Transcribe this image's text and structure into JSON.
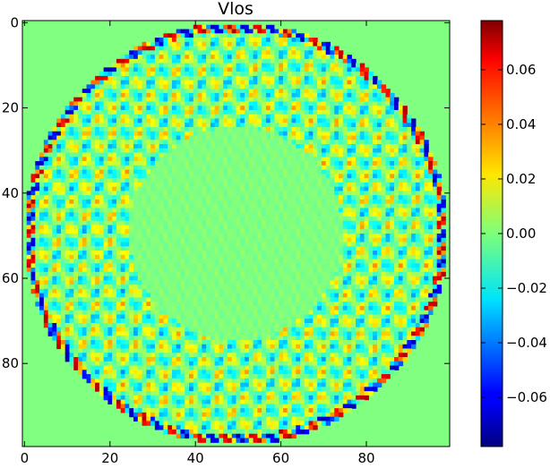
{
  "chart_data": {
    "type": "heatmap",
    "title": "Vlos",
    "xlabel": "",
    "ylabel": "",
    "grid": false,
    "xlim": [
      0,
      99
    ],
    "ylim": [
      99,
      0
    ],
    "x_ticks": [
      0,
      20,
      40,
      60,
      80
    ],
    "y_ticks": [
      0,
      20,
      40,
      60,
      80
    ],
    "x_tick_labels": [
      "0",
      "20",
      "40",
      "60",
      "80"
    ],
    "y_tick_labels": [
      "0",
      "20",
      "40",
      "60",
      "80"
    ],
    "grid_size": [
      100,
      100
    ],
    "colormap": "jet",
    "background_value": 0.0,
    "colorbar": {
      "vmin": -0.078,
      "vmax": 0.078,
      "ticks": [
        0.06,
        0.04,
        0.02,
        0.0,
        -0.02,
        -0.04,
        -0.06
      ],
      "tick_labels": [
        "0.06",
        "0.04",
        "0.02",
        "0.00",
        "−0.02",
        "−0.04",
        "−0.06"
      ]
    },
    "field": {
      "center": [
        49.5,
        49.5
      ],
      "outer_radius": 49.5,
      "inner_radius": 25.0,
      "ring_amplitude": 0.03,
      "core_amplitude": 0.004,
      "rim_amplitude": 0.07,
      "oscillation_period": 6.2
    }
  }
}
